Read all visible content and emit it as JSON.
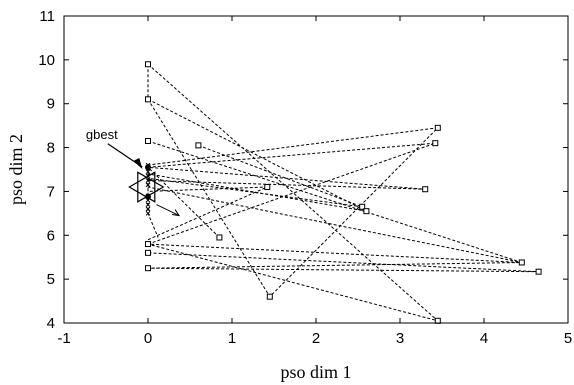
{
  "chart_data": {
    "type": "scatter",
    "xlabel": "pso dim 1",
    "ylabel": "pso dim 2",
    "xlim": [
      -1,
      5
    ],
    "ylim": [
      4,
      11
    ],
    "xticks": [
      "-1",
      "0",
      "1",
      "2",
      "3",
      "4",
      "5"
    ],
    "yticks": [
      "4",
      "5",
      "6",
      "7",
      "8",
      "9",
      "10",
      "11"
    ],
    "grid": false,
    "box": true,
    "line_style": "dashed",
    "marker": "square",
    "particles": [
      {
        "x": 0.0,
        "y": 9.9
      },
      {
        "x": 0.0,
        "y": 9.1
      },
      {
        "x": 0.0,
        "y": 8.15
      },
      {
        "x": 0.0,
        "y": 5.8
      },
      {
        "x": 0.0,
        "y": 5.6
      },
      {
        "x": 0.0,
        "y": 5.25
      },
      {
        "x": 0.6,
        "y": 8.05
      },
      {
        "x": 0.85,
        "y": 5.95
      },
      {
        "x": 1.42,
        "y": 7.1
      },
      {
        "x": 1.45,
        "y": 4.6
      },
      {
        "x": 2.55,
        "y": 6.65
      },
      {
        "x": 2.6,
        "y": 6.55
      },
      {
        "x": 3.3,
        "y": 7.05
      },
      {
        "x": 3.45,
        "y": 8.45
      },
      {
        "x": 3.42,
        "y": 8.1
      },
      {
        "x": 3.45,
        "y": 4.05
      },
      {
        "x": 4.45,
        "y": 5.38
      },
      {
        "x": 4.65,
        "y": 5.17
      }
    ],
    "paths": [
      [
        [
          0.0,
          9.9
        ],
        [
          0.0,
          9.1
        ],
        [
          1.45,
          4.6
        ],
        [
          3.45,
          8.45
        ],
        [
          0.0,
          7.6
        ]
      ],
      [
        [
          0.0,
          9.9
        ],
        [
          3.45,
          4.05
        ],
        [
          0.0,
          5.8
        ],
        [
          4.45,
          5.38
        ],
        [
          0.0,
          7.1
        ]
      ],
      [
        [
          0.0,
          9.1
        ],
        [
          2.6,
          6.55
        ],
        [
          0.0,
          7.4
        ]
      ],
      [
        [
          0.0,
          8.15
        ],
        [
          4.45,
          5.38
        ],
        [
          0.0,
          5.25
        ],
        [
          4.65,
          5.17
        ],
        [
          0.0,
          5.6
        ]
      ],
      [
        [
          0.6,
          8.05
        ],
        [
          2.55,
          6.65
        ],
        [
          0.0,
          7.3
        ]
      ],
      [
        [
          0.85,
          5.95
        ],
        [
          0.0,
          7.55
        ]
      ],
      [
        [
          0.0,
          5.8
        ],
        [
          3.42,
          8.1
        ],
        [
          0.0,
          7.55
        ],
        [
          3.3,
          7.05
        ],
        [
          0.0,
          7.25
        ]
      ],
      [
        [
          0.0,
          5.9
        ],
        [
          1.42,
          7.1
        ],
        [
          0.0,
          7.0
        ],
        [
          0.0,
          7.5
        ],
        [
          0.0,
          6.5
        ],
        [
          0.12,
          5.95
        ]
      ]
    ],
    "gbest": {
      "x": -0.02,
      "y": 7.1
    },
    "annotations": [
      {
        "text": "gbest",
        "x": -0.55,
        "y": 8.2
      }
    ]
  }
}
